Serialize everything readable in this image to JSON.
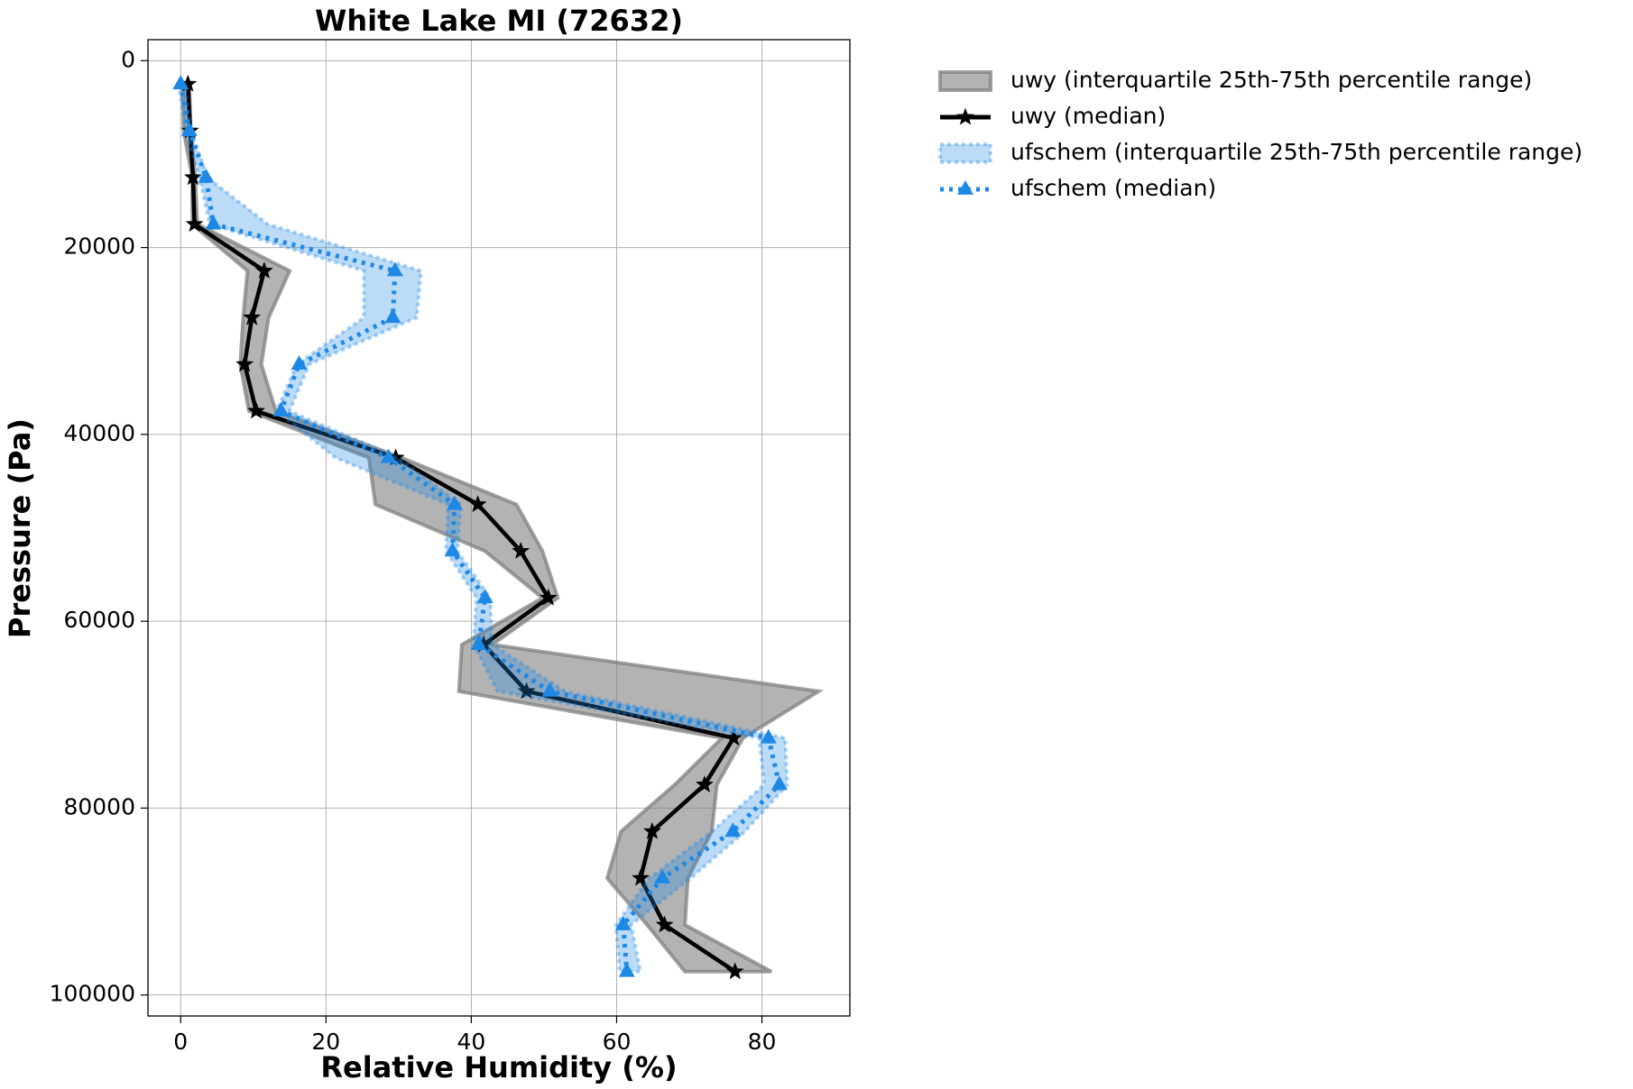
{
  "chart_data": {
    "type": "line",
    "title": "White Lake MI (72632)",
    "x_label": "Relative Humidity (%)",
    "y_label": "Pressure (Pa)",
    "xlim": [
      -4.5,
      92.1
    ],
    "ylim": [
      -2250,
      102250
    ],
    "invert_y": true,
    "xticks": [
      0,
      20,
      40,
      60,
      80
    ],
    "yticks": [
      0,
      20000,
      40000,
      60000,
      80000,
      100000
    ],
    "grid": true,
    "legend": "outside-right",
    "y": [
      2500,
      7500,
      12500,
      17500,
      22500,
      27500,
      32500,
      37500,
      42500,
      47500,
      52500,
      57500,
      62500,
      67500,
      72500,
      77500,
      82500,
      87500,
      92500,
      97500
    ],
    "series": [
      {
        "name": "uwy (interquartile 25th-75th percentile range)",
        "kind": "band",
        "color": "#808080",
        "low": [
          0.3,
          0.4,
          1.6,
          1.6,
          9.2,
          8.6,
          8.2,
          9.4,
          25.9,
          26.8,
          41.9,
          49.8,
          38.7,
          38.3,
          74.5,
          68.0,
          60.6,
          58.7,
          64.2,
          69.4
        ],
        "high": [
          1.2,
          1.4,
          2.0,
          2.3,
          15.0,
          12.1,
          11.1,
          13.1,
          30.4,
          46.2,
          49.8,
          51.9,
          42.9,
          87.8,
          77.4,
          73.8,
          73.1,
          69.8,
          69.4,
          81.3
        ]
      },
      {
        "name": "uwy (median)",
        "kind": "line",
        "color": "#000000",
        "marker": "star",
        "dash": "solid",
        "values": [
          1.0,
          1.3,
          1.7,
          1.9,
          11.5,
          9.8,
          8.8,
          10.4,
          29.6,
          40.9,
          46.8,
          50.6,
          41.7,
          47.6,
          76.1,
          72.1,
          64.9,
          63.3,
          66.6,
          76.3
        ]
      },
      {
        "name": "ufschem (interquartile 25th-75th percentile range)",
        "kind": "band",
        "color": "#1e88e5",
        "low": [
          -0.3,
          0.7,
          2.6,
          4.0,
          25.2,
          25.2,
          16.0,
          13.2,
          21.3,
          36.8,
          36.5,
          40.7,
          40.3,
          43.6,
          79.6,
          80.3,
          73.1,
          64.5,
          59.9,
          60.4
        ],
        "high": [
          0.6,
          1.4,
          3.7,
          12.0,
          33.1,
          32.5,
          17.7,
          15.0,
          29.9,
          38.6,
          38.1,
          42.6,
          42.9,
          52.9,
          83.2,
          83.5,
          77.7,
          70.2,
          62.0,
          63.3
        ]
      },
      {
        "name": "ufschem (median)",
        "kind": "line",
        "color": "#1e88e5",
        "marker": "triangle",
        "dash": "dotted",
        "values": [
          0.0,
          1.2,
          3.5,
          4.5,
          29.5,
          29.2,
          16.3,
          13.8,
          28.6,
          37.7,
          37.4,
          41.9,
          41.0,
          50.8,
          80.9,
          82.4,
          76.0,
          66.3,
          60.9,
          61.4
        ]
      }
    ]
  }
}
